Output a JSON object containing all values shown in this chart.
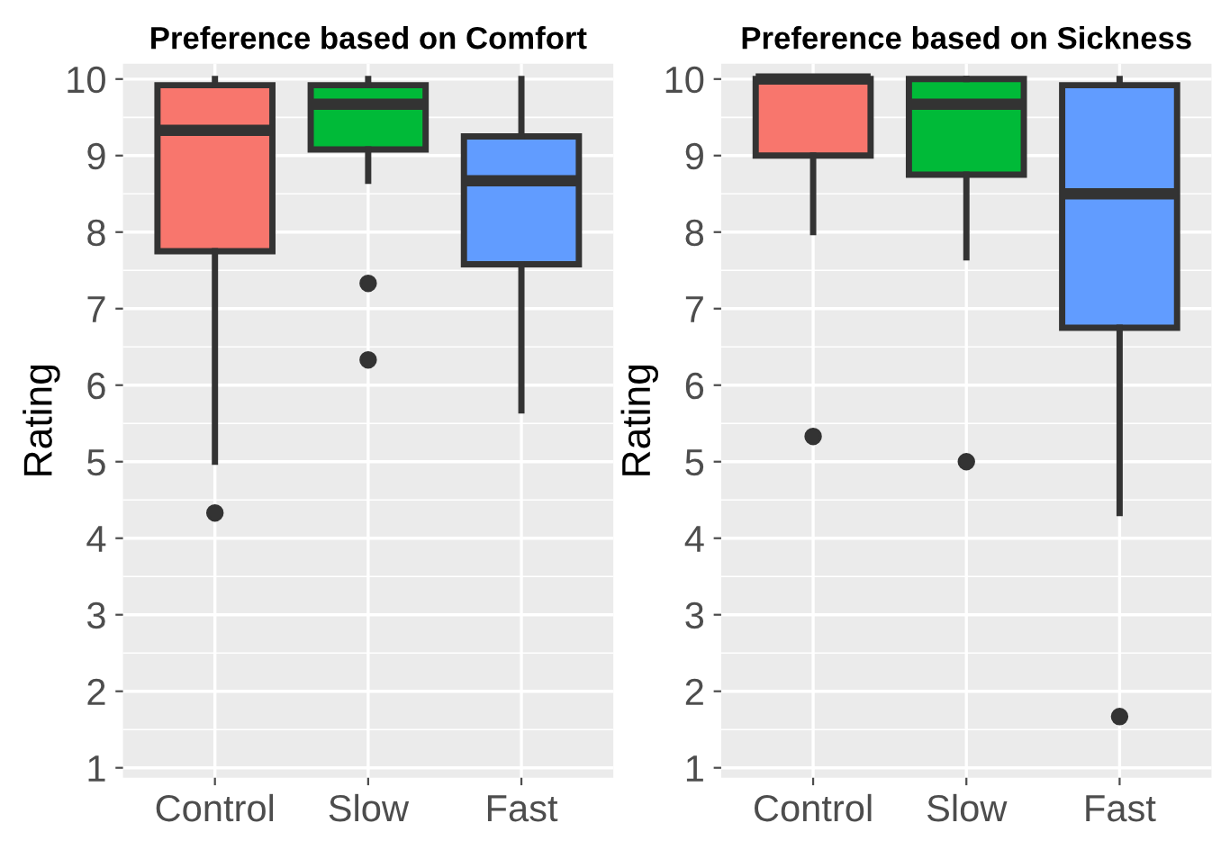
{
  "chart_data": [
    {
      "type": "box",
      "title": "Preference based on Comfort",
      "ylabel": "Rating",
      "categories": [
        "Control",
        "Slow",
        "Fast"
      ],
      "colors": [
        "#f8766d",
        "#00ba38",
        "#619cff"
      ],
      "boxes": [
        {
          "low": 5,
          "q1": 7.75,
          "median": 9.33,
          "q3": 9.92,
          "high": 10,
          "outliers": [
            4.33
          ]
        },
        {
          "low": 8.67,
          "q1": 9.08,
          "median": 9.67,
          "q3": 9.92,
          "high": 10,
          "outliers": [
            7.33,
            6.33
          ]
        },
        {
          "low": 5.67,
          "q1": 7.58,
          "median": 8.67,
          "q3": 9.25,
          "high": 10
        }
      ],
      "ylim": [
        0.87,
        10.2
      ],
      "yticks": [
        1,
        2,
        3,
        4,
        5,
        6,
        7,
        8,
        9,
        10
      ],
      "grid": true
    },
    {
      "type": "box",
      "title": "Preference based on Sickness",
      "ylabel": "Rating",
      "categories": [
        "Control",
        "Slow",
        "Fast"
      ],
      "colors": [
        "#f8766d",
        "#00ba38",
        "#619cff"
      ],
      "boxes": [
        {
          "low": 8,
          "q1": 9,
          "median": 10,
          "q3": 10,
          "high": 10,
          "outliers": [
            5.33
          ]
        },
        {
          "low": 7.67,
          "q1": 8.75,
          "median": 9.67,
          "q3": 10,
          "high": 10,
          "outliers": [
            5
          ]
        },
        {
          "low": 4.33,
          "q1": 6.75,
          "median": 8.5,
          "q3": 9.92,
          "high": 10,
          "outliers": [
            1.67
          ]
        }
      ],
      "ylim": [
        0.87,
        10.2
      ],
      "yticks": [
        1,
        2,
        3,
        4,
        5,
        6,
        7,
        8,
        9,
        10
      ],
      "grid": true
    }
  ]
}
